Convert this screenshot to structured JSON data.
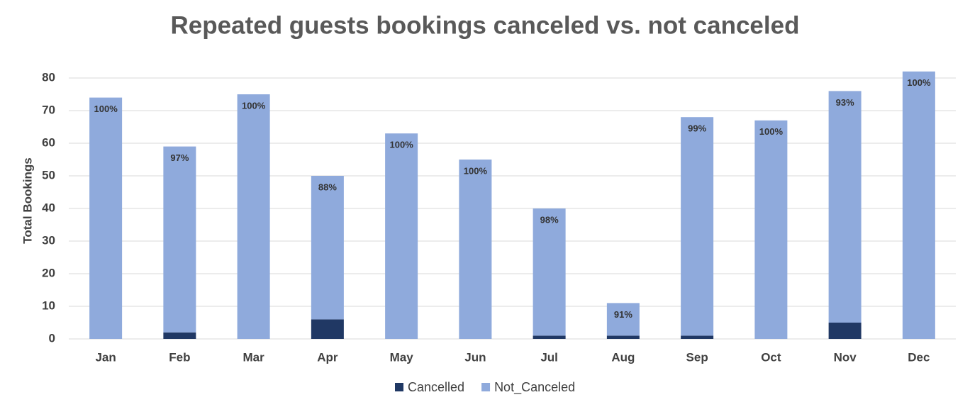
{
  "chart_data": {
    "type": "stacked_bar",
    "title": "Repeated guests bookings canceled vs. not canceled",
    "y_label": "Total Bookings",
    "categories": [
      "Jan",
      "Feb",
      "Mar",
      "Apr",
      "May",
      "Jun",
      "Jul",
      "Aug",
      "Sep",
      "Oct",
      "Nov",
      "Dec"
    ],
    "series": [
      {
        "name": "Cancelled",
        "color": "#203864",
        "values": [
          0,
          2,
          0,
          6,
          0,
          0,
          1,
          1,
          1,
          0,
          5,
          0
        ]
      },
      {
        "name": "Not_Canceled",
        "color": "#8faadc",
        "values": [
          74,
          57,
          75,
          44,
          63,
          55,
          39,
          10,
          67,
          67,
          71,
          82
        ],
        "percent_labels": [
          "100%",
          "97%",
          "100%",
          "88%",
          "100%",
          "100%",
          "98%",
          "91%",
          "99%",
          "100%",
          "93%",
          "100%"
        ]
      }
    ],
    "ylim": [
      0,
      80
    ],
    "yticks": [
      0,
      10,
      20,
      30,
      40,
      50,
      60,
      70,
      80
    ],
    "grid": true,
    "legend": "bottom"
  }
}
